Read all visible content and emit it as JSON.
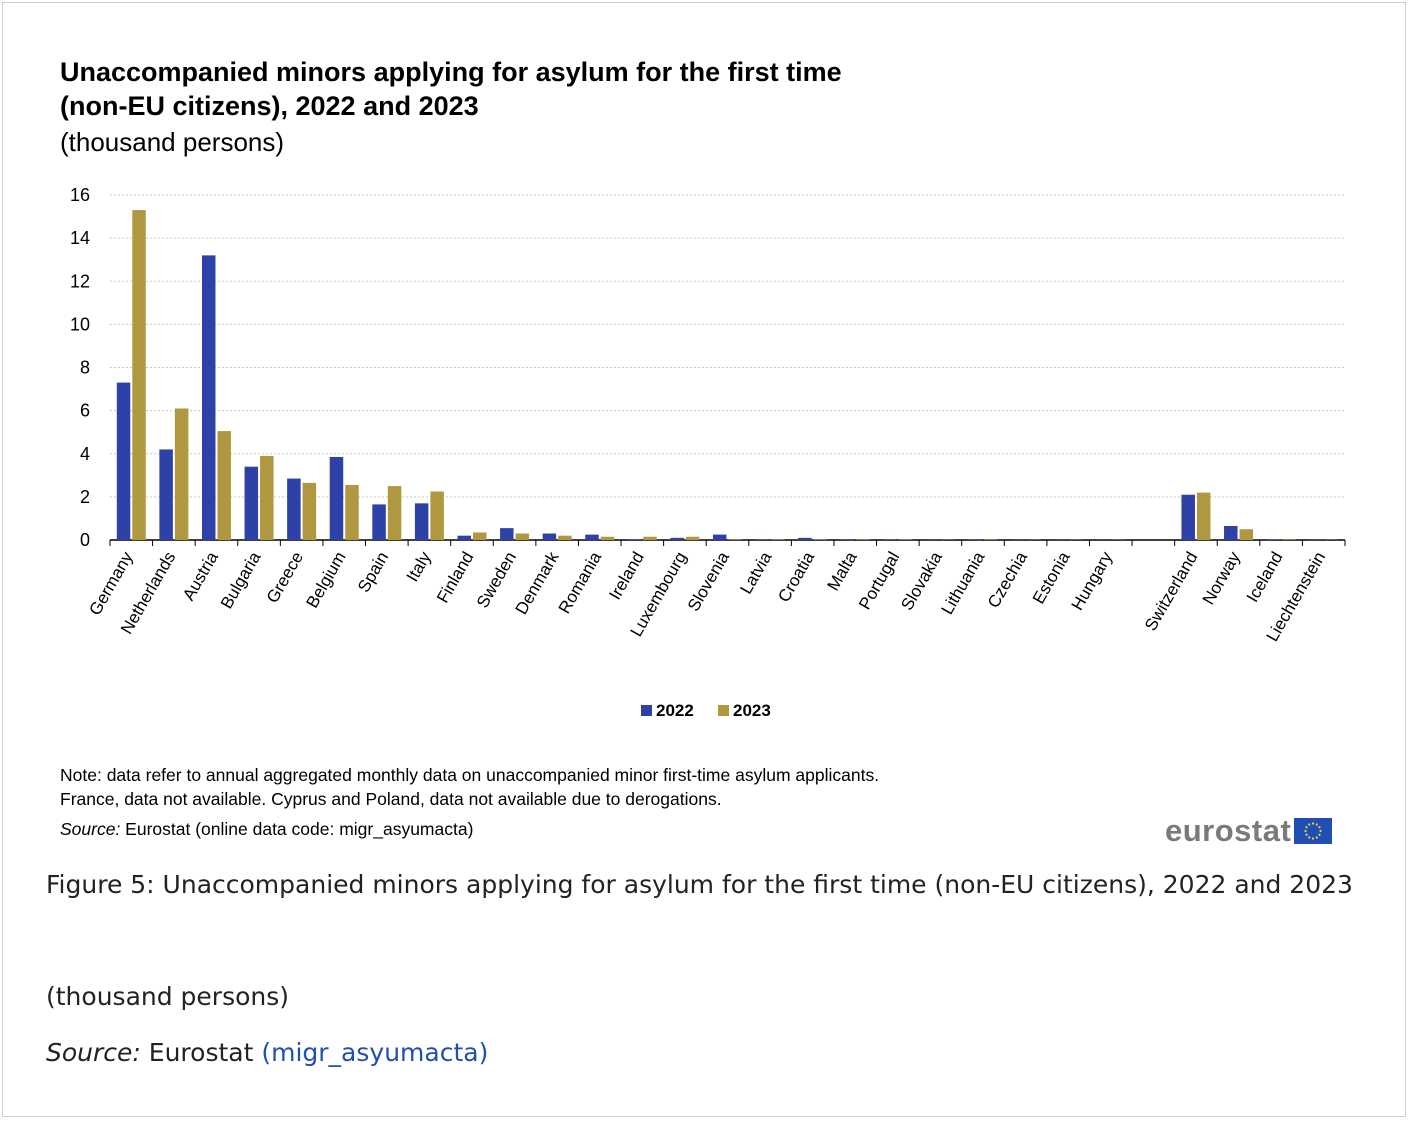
{
  "chart_data": {
    "type": "bar",
    "title_lines": [
      "Unaccompanied minors applying for asylum for the first time",
      "(non-EU citizens), 2022 and 2023"
    ],
    "subtitle": "(thousand persons)",
    "categories": [
      "Germany",
      "Netherlands",
      "Austria",
      "Bulgaria",
      "Greece",
      "Belgium",
      "Spain",
      "Italy",
      "Finland",
      "Sweden",
      "Denmark",
      "Romania",
      "Ireland",
      "Luxembourg",
      "Slovenia",
      "Latvia",
      "Croatia",
      "Malta",
      "Portugal",
      "Slovakia",
      "Lithuania",
      "Czechia",
      "Estonia",
      "Hungary",
      "",
      "Switzerland",
      "Norway",
      "Iceland",
      "Liechtenstein"
    ],
    "series": [
      {
        "name": "2022",
        "color": "#2d41a6",
        "values": [
          7.3,
          4.2,
          13.2,
          3.4,
          2.85,
          3.85,
          1.65,
          1.7,
          0.2,
          0.55,
          0.3,
          0.25,
          0.03,
          0.1,
          0.25,
          0.02,
          0.1,
          0.02,
          0.02,
          0.01,
          0.02,
          0.01,
          0.01,
          0.01,
          null,
          2.1,
          0.65,
          0.02,
          0.01
        ]
      },
      {
        "name": "2023",
        "color": "#b09840",
        "values": [
          15.3,
          6.1,
          5.05,
          3.9,
          2.65,
          2.55,
          2.5,
          2.25,
          0.35,
          0.3,
          0.2,
          0.15,
          0.15,
          0.15,
          0.02,
          0.02,
          0.02,
          0.02,
          0.02,
          0.01,
          0.02,
          0.01,
          0.01,
          0.01,
          null,
          2.2,
          0.5,
          0.02,
          0.01
        ]
      }
    ],
    "ylim": [
      0,
      16
    ],
    "yticks": [
      "0",
      "2",
      "4",
      "6",
      "8",
      "10",
      "12",
      "14",
      "16"
    ],
    "grid": true,
    "legend_position": "bottom-center"
  },
  "notes": [
    "Note: data refer to annual aggregated monthly data on unaccompanied minor first-time asylum applicants.",
    "France, data not available. Cyprus and Poland, data not available due to derogations."
  ],
  "source_small": {
    "label": "Source:",
    "text": " Eurostat (online data code: migr_asyumacta)"
  },
  "logo_text": "eurostat",
  "caption": {
    "figure": "Figure 5: Unaccompanied minors applying for asylum for the first time (non-EU citizens), 2022 and 2023",
    "unit": "(thousand persons)",
    "source_label": "Source:",
    "source_text": " Eurostat ",
    "source_link": "(migr_asyumacta)"
  }
}
